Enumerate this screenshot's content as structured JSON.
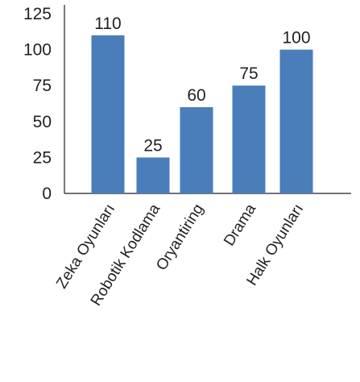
{
  "chart_data": {
    "type": "bar",
    "categories": [
      "Zeka Oyunları",
      "Robotik Kodlama",
      "Oryantiring",
      "Drama",
      "Halk Oyunları"
    ],
    "values": [
      110,
      25,
      60,
      75,
      100
    ],
    "title": "",
    "xlabel": "",
    "ylabel": "",
    "ylim": [
      0,
      125
    ],
    "yticks": [
      0,
      25,
      50,
      75,
      100,
      125
    ],
    "grid": false,
    "bar_color": "#4a7ebb",
    "axis_color": "#231f20"
  }
}
